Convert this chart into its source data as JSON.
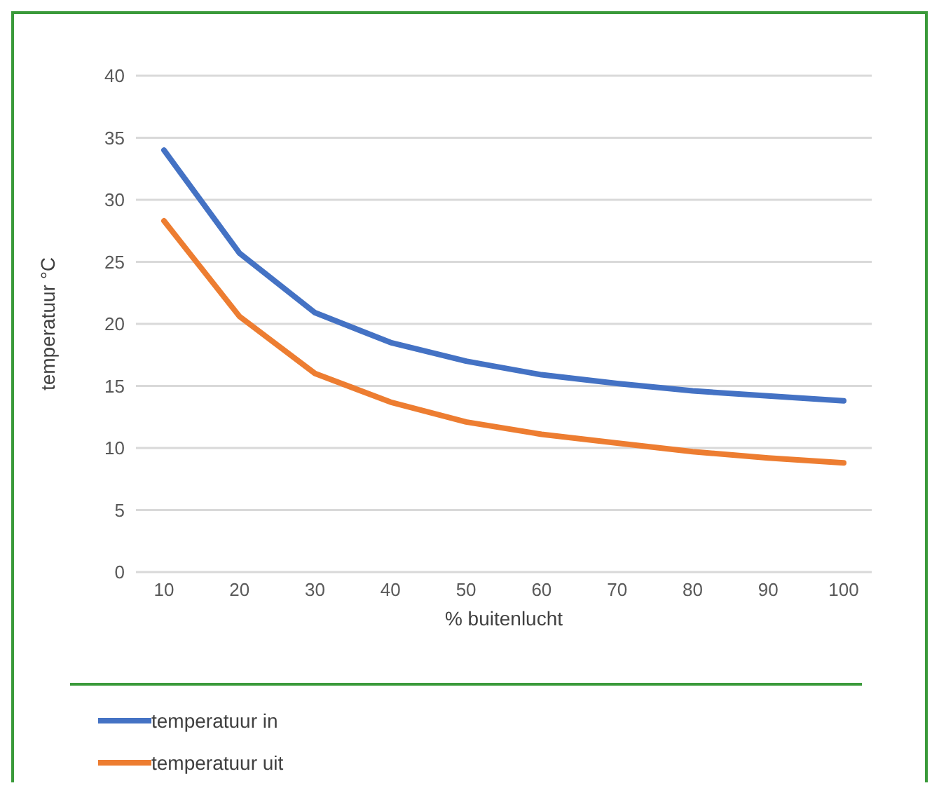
{
  "chart_data": {
    "type": "line",
    "xlabel": "% buitenlucht",
    "ylabel": "temperatuur °C",
    "categories": [
      "10",
      "20",
      "30",
      "40",
      "50",
      "60",
      "70",
      "80",
      "90",
      "100"
    ],
    "series": [
      {
        "name": "temperatuur in",
        "color": "#4472c4",
        "values": [
          34,
          25.7,
          20.9,
          18.5,
          17,
          15.9,
          15.2,
          14.6,
          14.2,
          13.8
        ]
      },
      {
        "name": "temperatuur uit",
        "color": "#ed7d31",
        "values": [
          28.3,
          20.6,
          16,
          13.7,
          12.1,
          11.1,
          10.4,
          9.7,
          9.2,
          8.8
        ]
      }
    ],
    "ylim": [
      0,
      40
    ],
    "yticks": [
      0,
      5,
      10,
      15,
      20,
      25,
      30,
      35,
      40
    ],
    "grid": "y",
    "legend": "bottom left",
    "marker": "none",
    "line_style": "solid"
  }
}
